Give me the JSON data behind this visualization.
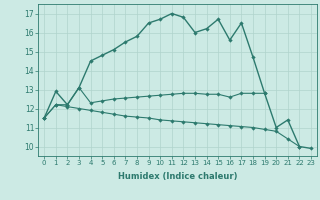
{
  "xlabel": "Humidex (Indice chaleur)",
  "background_color": "#cceae4",
  "grid_color": "#b0d4cc",
  "line_color": "#2d7a6e",
  "xlim": [
    -0.5,
    23.5
  ],
  "ylim": [
    9.5,
    17.5
  ],
  "xticks": [
    0,
    1,
    2,
    3,
    4,
    5,
    6,
    7,
    8,
    9,
    10,
    11,
    12,
    13,
    14,
    15,
    16,
    17,
    18,
    19,
    20,
    21,
    22,
    23
  ],
  "yticks": [
    10,
    11,
    12,
    13,
    14,
    15,
    16,
    17
  ],
  "series": [
    {
      "x": [
        0,
        1,
        2,
        3,
        4,
        5,
        6,
        7,
        8,
        9,
        10,
        11,
        12,
        13,
        14,
        15,
        16,
        17,
        18,
        19,
        20,
        21,
        22,
        23
      ],
      "y": [
        11.5,
        12.9,
        12.2,
        13.1,
        14.5,
        14.8,
        15.1,
        15.5,
        15.8,
        16.5,
        16.7,
        17.0,
        16.8,
        16.0,
        16.2,
        16.7,
        15.6,
        16.5,
        14.7,
        12.8,
        11.0,
        11.4,
        10.0,
        9.9
      ]
    },
    {
      "x": [
        0,
        1,
        2,
        3,
        4,
        5,
        6,
        7,
        8,
        9,
        10,
        11,
        12,
        13,
        14,
        15,
        16,
        17,
        18,
        19
      ],
      "y": [
        11.5,
        12.2,
        12.2,
        13.1,
        12.3,
        12.4,
        12.5,
        12.55,
        12.6,
        12.65,
        12.7,
        12.75,
        12.8,
        12.8,
        12.75,
        12.75,
        12.6,
        12.8,
        12.8,
        12.8
      ]
    },
    {
      "x": [
        0,
        1,
        2,
        3,
        4,
        5,
        6,
        7,
        8,
        9,
        10,
        11,
        12,
        13,
        14,
        15,
        16,
        17,
        18,
        19,
        20,
        21,
        22
      ],
      "y": [
        11.5,
        12.2,
        12.1,
        12.0,
        11.9,
        11.8,
        11.7,
        11.6,
        11.55,
        11.5,
        11.4,
        11.35,
        11.3,
        11.25,
        11.2,
        11.15,
        11.1,
        11.05,
        11.0,
        10.9,
        10.8,
        10.4,
        10.0
      ]
    }
  ]
}
